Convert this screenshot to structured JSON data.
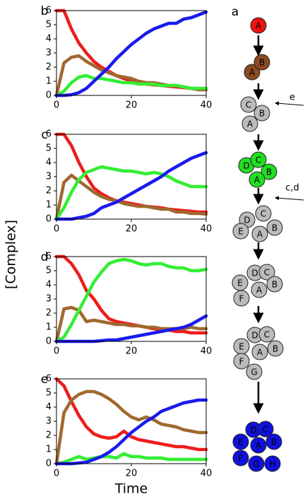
{
  "axis_labels": {
    "x": "Time",
    "y": "[Complex]"
  },
  "chart_data": [
    {
      "type": "line",
      "panel": "b",
      "x": [
        0,
        2,
        4,
        6,
        8,
        10,
        12,
        14,
        16,
        18,
        20,
        22,
        24,
        26,
        28,
        30,
        32,
        34,
        36,
        38,
        40
      ],
      "xlim": [
        0,
        40
      ],
      "xticks": [
        0,
        20,
        40
      ],
      "ylim": [
        0,
        6
      ],
      "yticks": [
        0,
        1,
        2,
        3,
        4,
        5,
        6
      ],
      "series": [
        {
          "color": "#ee1c1c",
          "values": [
            6,
            6,
            4.7,
            3.7,
            3.0,
            2.4,
            2.0,
            1.7,
            1.4,
            1.2,
            1.0,
            0.9,
            0.8,
            0.75,
            0.7,
            0.65,
            0.6,
            0.55,
            0.5,
            0.45,
            0.45
          ]
        },
        {
          "color": "#a0682e",
          "values": [
            0,
            2.3,
            2.7,
            2.8,
            2.4,
            2.1,
            1.8,
            1.6,
            1.4,
            1.3,
            1.2,
            1.0,
            0.9,
            0.9,
            0.8,
            0.7,
            0.7,
            0.6,
            0.5,
            0.4,
            0.4
          ]
        },
        {
          "color": "#33ee33",
          "values": [
            0,
            0.3,
            0.9,
            1.3,
            1.4,
            1.2,
            1.2,
            1.1,
            1.0,
            0.9,
            0.9,
            0.8,
            0.8,
            0.8,
            0.7,
            0.7,
            0.7,
            0.6,
            0.5,
            0.5,
            0.5
          ]
        },
        {
          "color": "#1a1aee",
          "values": [
            0,
            0,
            0.05,
            0.2,
            0.5,
            1.0,
            1.5,
            2.0,
            2.6,
            3.1,
            3.6,
            4.0,
            4.4,
            4.7,
            4.9,
            5.1,
            5.1,
            5.4,
            5.5,
            5.7,
            5.9
          ]
        }
      ]
    },
    {
      "type": "line",
      "panel": "c",
      "x": [
        0,
        2,
        4,
        6,
        8,
        10,
        12,
        14,
        16,
        18,
        20,
        22,
        24,
        26,
        28,
        30,
        32,
        34,
        36,
        38,
        40
      ],
      "xlim": [
        0,
        40
      ],
      "xticks": [
        0,
        20,
        40
      ],
      "ylim": [
        0,
        6
      ],
      "yticks": [
        0,
        1,
        2,
        3,
        4,
        5,
        6
      ],
      "series": [
        {
          "color": "#ee1c1c",
          "values": [
            6,
            6,
            5.2,
            4.0,
            3.0,
            2.2,
            1.8,
            1.5,
            1.3,
            1.2,
            1.1,
            1.0,
            0.9,
            0.85,
            0.8,
            0.7,
            0.65,
            0.6,
            0.55,
            0.5,
            0.5
          ]
        },
        {
          "color": "#a0682e",
          "values": [
            0,
            2.6,
            3.1,
            2.7,
            2.3,
            1.9,
            1.6,
            1.4,
            1.3,
            1.1,
            1.0,
            0.9,
            0.9,
            0.8,
            0.7,
            0.7,
            0.5,
            0.5,
            0.4,
            0.4,
            0.35
          ]
        },
        {
          "color": "#33ee33",
          "values": [
            0,
            0.8,
            1.9,
            2.8,
            3.3,
            3.5,
            3.7,
            3.6,
            3.5,
            3.4,
            3.4,
            3.3,
            3.2,
            3.3,
            3.2,
            3.0,
            2.7,
            2.5,
            2.3,
            2.3,
            2.3
          ]
        },
        {
          "color": "#1a1aee",
          "values": [
            0,
            0,
            0,
            0.1,
            0.2,
            0.4,
            0.8,
            1.0,
            1.2,
            1.5,
            1.8,
            2.1,
            2.4,
            2.7,
            3.0,
            3.4,
            3.7,
            4.0,
            4.3,
            4.5,
            4.7
          ]
        }
      ]
    },
    {
      "type": "line",
      "panel": "d",
      "x": [
        0,
        2,
        4,
        6,
        8,
        10,
        12,
        14,
        16,
        18,
        20,
        22,
        24,
        26,
        28,
        30,
        32,
        34,
        36,
        38,
        40
      ],
      "xlim": [
        0,
        40
      ],
      "xticks": [
        0,
        20,
        40
      ],
      "ylim": [
        0,
        6
      ],
      "yticks": [
        0,
        1,
        2,
        3,
        4,
        5,
        6
      ],
      "series": [
        {
          "color": "#ee1c1c",
          "values": [
            6,
            6,
            5.5,
            4.7,
            3.6,
            3.0,
            2.2,
            1.6,
            1.4,
            1.3,
            1.2,
            1.1,
            1.0,
            0.9,
            0.8,
            0.8,
            0.7,
            0.7,
            0.6,
            0.6,
            0.6
          ]
        },
        {
          "color": "#a0682e",
          "values": [
            0,
            2.3,
            2.4,
            2.2,
            1.4,
            1.5,
            1.4,
            1.3,
            1.2,
            1.2,
            1.1,
            1.1,
            1.0,
            1.0,
            0.9,
            0.9,
            0.9,
            0.9,
            1.0,
            0.9,
            0.9
          ]
        },
        {
          "color": "#33ee33",
          "values": [
            0,
            0.3,
            1.2,
            2.2,
            3.2,
            4.2,
            4.9,
            5.5,
            5.7,
            5.8,
            5.7,
            5.5,
            5.4,
            5.5,
            5.5,
            5.3,
            5.2,
            5.2,
            5.0,
            5.0,
            5.1
          ]
        },
        {
          "color": "#1a1aee",
          "values": [
            0,
            0,
            0,
            0,
            0,
            0,
            0.05,
            0.1,
            0.1,
            0.2,
            0.3,
            0.4,
            0.5,
            0.6,
            0.7,
            0.8,
            0.9,
            1.0,
            1.2,
            1.5,
            1.8
          ]
        }
      ]
    },
    {
      "type": "line",
      "panel": "e",
      "x": [
        0,
        2,
        4,
        6,
        8,
        10,
        12,
        14,
        16,
        18,
        20,
        22,
        24,
        26,
        28,
        30,
        32,
        34,
        36,
        38,
        40
      ],
      "xlim": [
        0,
        40
      ],
      "xticks": [
        0,
        20,
        40
      ],
      "ylim": [
        0,
        6
      ],
      "yticks": [
        0,
        1,
        2,
        3,
        4,
        5,
        6
      ],
      "series": [
        {
          "color": "#ee1c1c",
          "values": [
            6,
            5.5,
            4.4,
            3.4,
            2.6,
            2.1,
            1.9,
            1.8,
            1.9,
            2.3,
            1.9,
            1.7,
            1.6,
            1.5,
            1.4,
            1.3,
            1.2,
            1.2,
            1.1,
            1.0,
            1.0
          ]
        },
        {
          "color": "#a0682e",
          "values": [
            0,
            3.6,
            4.5,
            4.9,
            5.1,
            5.1,
            4.9,
            4.6,
            4.2,
            3.7,
            3.3,
            3.1,
            3.3,
            3.1,
            2.8,
            2.7,
            2.6,
            2.4,
            2.3,
            2.2,
            2.2
          ]
        },
        {
          "color": "#33ee33",
          "values": [
            0,
            0.1,
            0.3,
            0.5,
            0.3,
            0.4,
            0.5,
            0.5,
            0.4,
            0.7,
            0.5,
            0.5,
            0.4,
            0.4,
            0.4,
            0.3,
            0.3,
            0.3,
            0.3,
            0.3,
            0.3
          ]
        },
        {
          "color": "#1a1aee",
          "values": [
            0,
            0,
            0,
            0.05,
            0.1,
            0.3,
            0.5,
            0.8,
            1.2,
            1.7,
            2.2,
            2.6,
            3.0,
            3.3,
            3.7,
            3.9,
            4.1,
            4.3,
            4.4,
            4.5,
            4.5
          ]
        }
      ]
    }
  ],
  "diagram": {
    "panel": "a",
    "stages": [
      {
        "color": "#ee1111",
        "labels": [
          "A"
        ]
      },
      {
        "color": "#8b4a1f",
        "labels": [
          "A",
          "B"
        ]
      },
      {
        "color": "#bbbbbb",
        "labels": [
          "C",
          "B",
          "A"
        ]
      },
      {
        "color": "#22dd22",
        "labels": [
          "D",
          "C",
          "B",
          "A"
        ]
      },
      {
        "color": "#bbbbbb",
        "labels": [
          "D",
          "C",
          "E",
          "B",
          "A"
        ]
      },
      {
        "color": "#bbbbbb",
        "labels": [
          "D",
          "C",
          "E",
          "B",
          "A",
          "F"
        ]
      },
      {
        "color": "#bbbbbb",
        "labels": [
          "D",
          "C",
          "E",
          "B",
          "A",
          "F",
          "G"
        ]
      },
      {
        "color": "#1111dd",
        "labels": [
          "D",
          "C",
          "E",
          "A",
          "B",
          "F",
          "G",
          "H"
        ]
      }
    ],
    "inputs": [
      {
        "label": "e"
      },
      {
        "label": "c,d"
      }
    ]
  }
}
